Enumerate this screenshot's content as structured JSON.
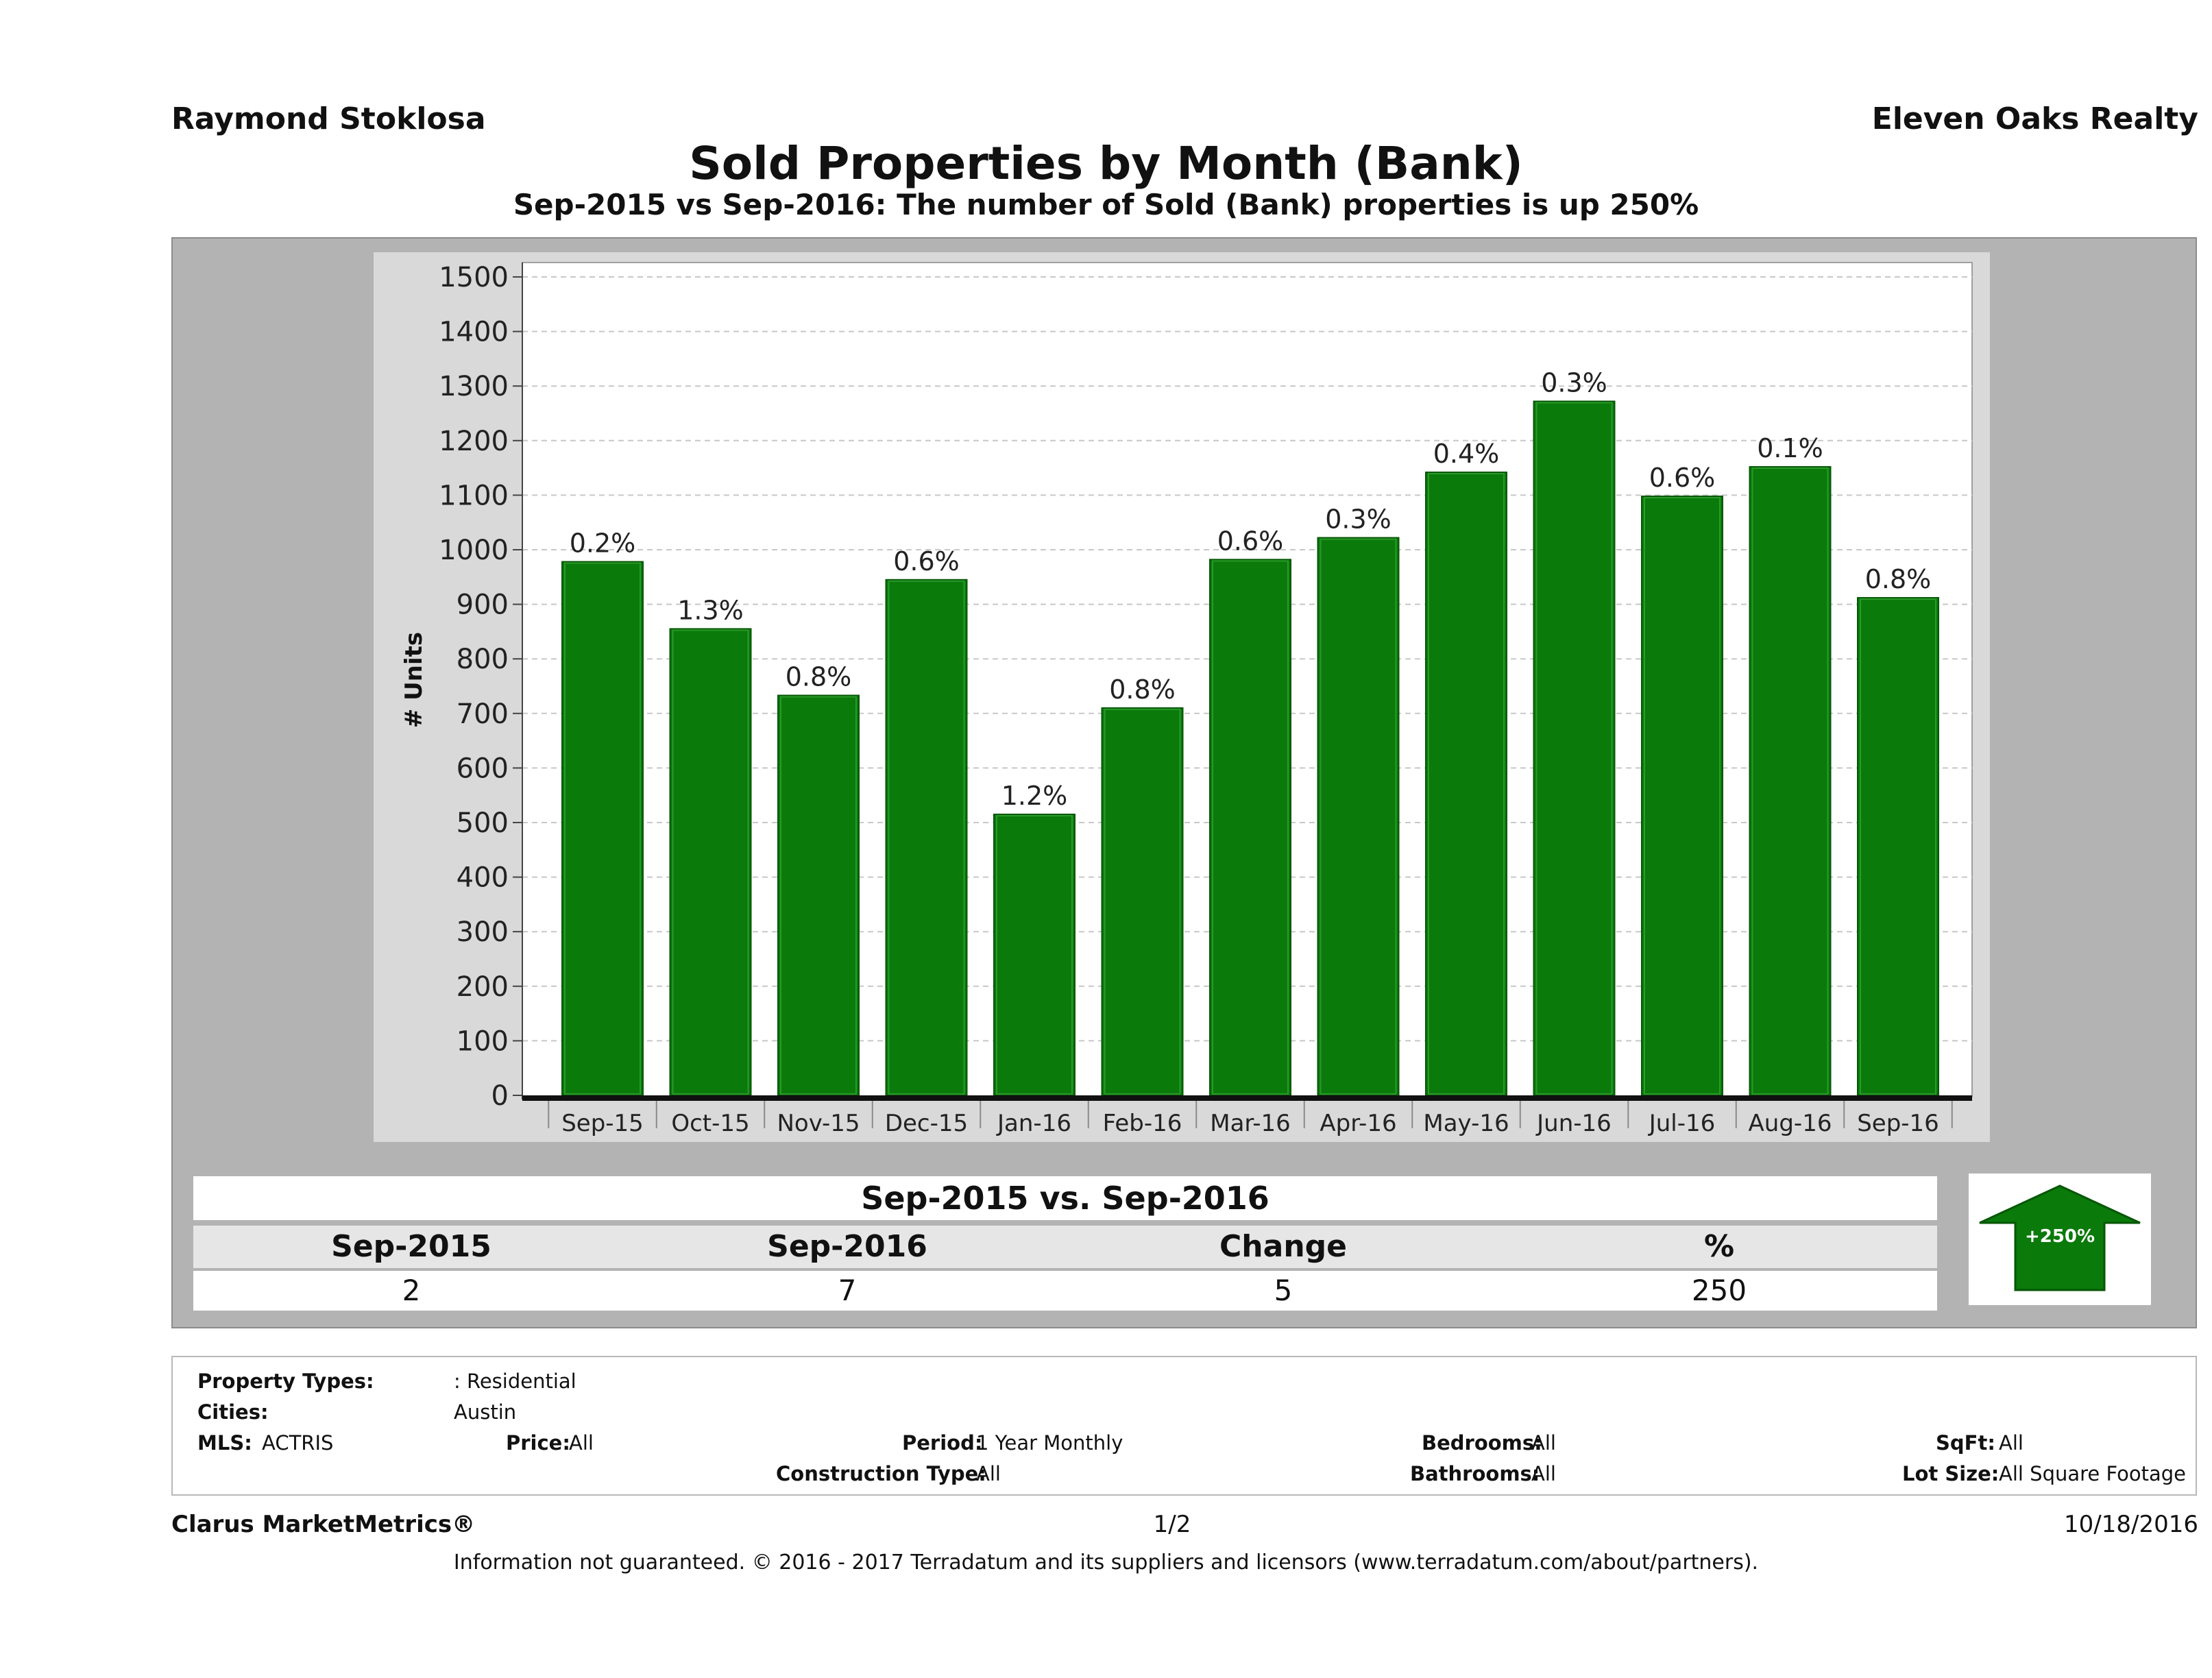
{
  "header": {
    "agent_name": "Raymond Stoklosa",
    "company": "Eleven Oaks Realty",
    "title": "Sold Properties by Month (Bank)",
    "subtitle": "Sep-2015 vs Sep-2016: The number of Sold (Bank)  properties is up 250%"
  },
  "colors": {
    "bar": "#0a7a0a",
    "bar_edge": "#075707",
    "panel": "#b3b3b3",
    "plot_bg": "#ffffff"
  },
  "chart_data": {
    "type": "bar",
    "ylabel": "# Units",
    "xlabel": "",
    "ylim": [
      0,
      1500
    ],
    "yticks": [
      0,
      100,
      200,
      300,
      400,
      500,
      600,
      700,
      800,
      900,
      1000,
      1100,
      1200,
      1300,
      1400,
      1500
    ],
    "grid": true,
    "categories": [
      "Sep-15",
      "Oct-15",
      "Nov-15",
      "Dec-15",
      "Jan-16",
      "Feb-16",
      "Mar-16",
      "Apr-16",
      "May-16",
      "Jun-16",
      "Jul-16",
      "Aug-16",
      "Sep-16"
    ],
    "values": [
      978,
      855,
      733,
      945,
      515,
      710,
      982,
      1022,
      1142,
      1272,
      1098,
      1152,
      912
    ],
    "data_labels": [
      "0.2%",
      "1.3%",
      "0.8%",
      "0.6%",
      "1.2%",
      "0.8%",
      "0.6%",
      "0.3%",
      "0.4%",
      "0.3%",
      "0.6%",
      "0.1%",
      "0.8%"
    ]
  },
  "summary": {
    "title": "Sep-2015 vs. Sep-2016",
    "headers": [
      "Sep-2015",
      "Sep-2016",
      "Change",
      "%"
    ],
    "values": [
      "2",
      "7",
      "5",
      "250"
    ],
    "badge": "+250%"
  },
  "filters": {
    "property_types_label": "Property Types:",
    "property_types_value": ": Residential",
    "cities_label": "Cities:",
    "cities_value": "Austin",
    "mls_label": "MLS:",
    "mls_value": "ACTRIS",
    "price_label": "Price:",
    "price_value": "All",
    "period_label": "Period:",
    "period_value": "1 Year Monthly",
    "construction_label": "Construction Type:",
    "construction_value": "All",
    "bedrooms_label": "Bedrooms:",
    "bedrooms_value": "All",
    "bathrooms_label": "Bathrooms:",
    "bathrooms_value": "All",
    "sqft_label": "SqFt:",
    "sqft_value": "All",
    "lotsize_label": "Lot Size:",
    "lotsize_value": "All Square Footage"
  },
  "footer": {
    "brand": "Clarus MarketMetrics®",
    "page": "1/2",
    "date": "10/18/2016",
    "disclaimer": "Information not guaranteed. © 2016 - 2017 Terradatum and its suppliers and licensors (www.terradatum.com/about/partners)."
  }
}
